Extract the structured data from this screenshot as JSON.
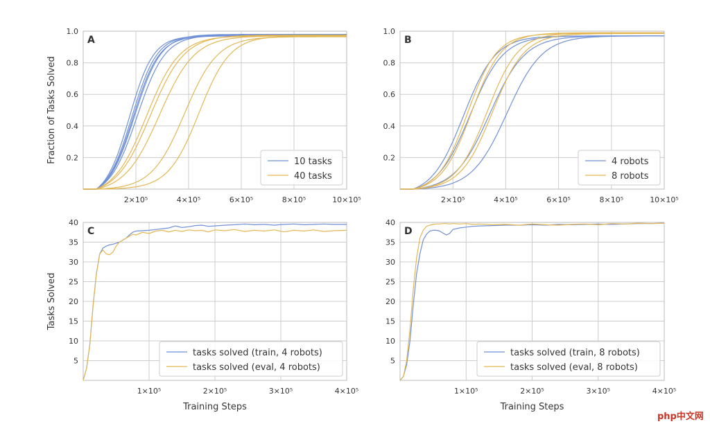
{
  "colors": {
    "blue": "#6f8fd6",
    "gold": "#e3b652"
  },
  "watermark": "php中文网",
  "chart_data": [
    {
      "id": "A",
      "type": "line",
      "letter": "A",
      "ylabel": "Fraction of Tasks Solved",
      "xlabel": "",
      "xlim": [
        0,
        1000000
      ],
      "ylim": [
        0,
        1.0
      ],
      "xticks": [
        200000,
        400000,
        600000,
        800000,
        1000000
      ],
      "xtick_labels": [
        "2×10⁵",
        "4×10⁵",
        "6×10⁵",
        "8×10⁵",
        "10×10⁵"
      ],
      "yticks": [
        0.2,
        0.4,
        0.6,
        0.8,
        1.0
      ],
      "ytick_labels": [
        "0.2",
        "0.4",
        "0.6",
        "0.8",
        "1.0"
      ],
      "legend": {
        "position": "lower-right",
        "entries": [
          {
            "label": "10 tasks",
            "color_key": "blue"
          },
          {
            "label": "40 tasks",
            "color_key": "gold"
          }
        ]
      },
      "series": [
        {
          "color_key": "blue",
          "curve": {
            "kind": "sigmoid",
            "mid": 185000,
            "k": 2.1e-05,
            "max": 0.975
          }
        },
        {
          "color_key": "blue",
          "curve": {
            "kind": "sigmoid",
            "mid": 175000,
            "k": 2.2e-05,
            "max": 0.97
          }
        },
        {
          "color_key": "blue",
          "curve": {
            "kind": "sigmoid",
            "mid": 195000,
            "k": 2e-05,
            "max": 0.98
          }
        },
        {
          "color_key": "blue",
          "curve": {
            "kind": "sigmoid",
            "mid": 205000,
            "k": 1.9e-05,
            "max": 0.975
          }
        },
        {
          "color_key": "blue",
          "curve": {
            "kind": "sigmoid",
            "mid": 190000,
            "k": 2.05e-05,
            "max": 0.97
          }
        },
        {
          "color_key": "gold",
          "curve": {
            "kind": "sigmoid",
            "mid": 255000,
            "k": 1.55e-05,
            "max": 0.975
          }
        },
        {
          "color_key": "gold",
          "curve": {
            "kind": "sigmoid",
            "mid": 240000,
            "k": 1.6e-05,
            "max": 0.97
          }
        },
        {
          "color_key": "gold",
          "curve": {
            "kind": "sigmoid",
            "mid": 290000,
            "k": 1.5e-05,
            "max": 0.97
          }
        },
        {
          "color_key": "gold",
          "curve": {
            "kind": "sigmoid",
            "mid": 385000,
            "k": 1.6e-05,
            "max": 0.965
          }
        },
        {
          "color_key": "gold",
          "curve": {
            "kind": "sigmoid",
            "mid": 440000,
            "k": 1.7e-05,
            "max": 0.97
          }
        }
      ]
    },
    {
      "id": "B",
      "type": "line",
      "letter": "B",
      "ylabel": "",
      "xlabel": "",
      "xlim": [
        0,
        1000000
      ],
      "ylim": [
        0,
        1.0
      ],
      "xticks": [
        200000,
        400000,
        600000,
        800000,
        1000000
      ],
      "xtick_labels": [
        "2×10⁵",
        "4×10⁵",
        "6×10⁵",
        "8×10⁵",
        "10×10⁵"
      ],
      "yticks": [
        0.2,
        0.4,
        0.6,
        0.8,
        1.0
      ],
      "ytick_labels": [
        "0.2",
        "0.4",
        "0.6",
        "0.8",
        "1.0"
      ],
      "legend": {
        "position": "lower-right",
        "entries": [
          {
            "label": "4 robots",
            "color_key": "blue"
          },
          {
            "label": "8 robots",
            "color_key": "gold"
          }
        ]
      },
      "series": [
        {
          "color_key": "blue",
          "curve": {
            "kind": "sigmoid",
            "mid": 240000,
            "k": 1.65e-05,
            "max": 0.97
          }
        },
        {
          "color_key": "blue",
          "curve": {
            "kind": "sigmoid",
            "mid": 265000,
            "k": 1.6e-05,
            "max": 0.97
          }
        },
        {
          "color_key": "blue",
          "curve": {
            "kind": "sigmoid",
            "mid": 340000,
            "k": 1.5e-05,
            "max": 0.97
          }
        },
        {
          "color_key": "blue",
          "curve": {
            "kind": "sigmoid",
            "mid": 405000,
            "k": 1.5e-05,
            "max": 0.97
          }
        },
        {
          "color_key": "gold",
          "curve": {
            "kind": "sigmoid",
            "mid": 255000,
            "k": 1.8e-05,
            "max": 0.985
          }
        },
        {
          "color_key": "gold",
          "curve": {
            "kind": "sigmoid",
            "mid": 270000,
            "k": 1.75e-05,
            "max": 0.99
          }
        },
        {
          "color_key": "gold",
          "curve": {
            "kind": "sigmoid",
            "mid": 330000,
            "k": 1.7e-05,
            "max": 0.99
          }
        },
        {
          "color_key": "gold",
          "curve": {
            "kind": "sigmoid",
            "mid": 350000,
            "k": 1.65e-05,
            "max": 0.985
          }
        }
      ]
    },
    {
      "id": "C",
      "type": "line",
      "letter": "C",
      "ylabel": "Tasks Solved",
      "xlabel": "Training Steps",
      "xlim": [
        0,
        400000
      ],
      "ylim": [
        0,
        40
      ],
      "xticks": [
        100000,
        200000,
        300000,
        400000
      ],
      "xtick_labels": [
        "1×10⁵",
        "2×10⁵",
        "3×10⁵",
        "4×10⁵"
      ],
      "yticks": [
        5,
        10,
        15,
        20,
        25,
        30,
        35,
        40
      ],
      "ytick_labels": [
        "5",
        "10",
        "15",
        "20",
        "25",
        "30",
        "35",
        "40"
      ],
      "legend": {
        "position": "lower-right",
        "entries": [
          {
            "label": "tasks solved (train, 4 robots)",
            "color_key": "blue"
          },
          {
            "label": "tasks solved (eval, 4 robots)",
            "color_key": "gold"
          }
        ]
      },
      "series": [
        {
          "color_key": "blue",
          "curve": {
            "kind": "points",
            "x": [
              0,
              5000,
              10000,
              15000,
              20000,
              25000,
              30000,
              35000,
              40000,
              45000,
              50000,
              55000,
              60000,
              65000,
              70000,
              75000,
              80000,
              90000,
              100000,
              110000,
              120000,
              130000,
              140000,
              150000,
              160000,
              170000,
              180000,
              190000,
              200000,
              215000,
              230000,
              245000,
              260000,
              275000,
              290000,
              305000,
              320000,
              335000,
              350000,
              365000,
              380000,
              400000
            ],
            "y": [
              0,
              3,
              9,
              19,
              27,
              32,
              33.5,
              34,
              34.3,
              34.5,
              34.7,
              35,
              35.5,
              36,
              36.8,
              37.5,
              37.8,
              37.9,
              38,
              38.2,
              38.4,
              38.6,
              39.1,
              38.7,
              38.9,
              39.2,
              39.3,
              39,
              39.1,
              39.3,
              39.4,
              39.6,
              39.4,
              39.5,
              39.3,
              39.5,
              39.6,
              39.4,
              39.5,
              39.6,
              39.5,
              39.5
            ]
          }
        },
        {
          "color_key": "gold",
          "curve": {
            "kind": "points",
            "x": [
              0,
              5000,
              10000,
              15000,
              20000,
              25000,
              30000,
              35000,
              40000,
              45000,
              50000,
              55000,
              60000,
              65000,
              70000,
              75000,
              80000,
              90000,
              100000,
              110000,
              120000,
              130000,
              140000,
              150000,
              160000,
              170000,
              180000,
              190000,
              200000,
              215000,
              230000,
              245000,
              260000,
              275000,
              290000,
              305000,
              320000,
              335000,
              350000,
              365000,
              380000,
              400000
            ],
            "y": [
              0,
              3,
              9,
              19,
              27,
              32,
              33,
              32,
              31.8,
              32.5,
              34,
              35,
              35.5,
              36,
              36.5,
              37,
              36.8,
              37.5,
              37.2,
              37.8,
              38,
              37.6,
              38,
              37.7,
              38.1,
              37.9,
              38,
              37.6,
              38.1,
              37.9,
              38.2,
              37.7,
              38,
              37.8,
              38.1,
              37.6,
              38,
              37.8,
              38.1,
              37.7,
              37.9,
              38
            ]
          }
        }
      ]
    },
    {
      "id": "D",
      "type": "line",
      "letter": "D",
      "ylabel": "",
      "xlabel": "Training Steps",
      "xlim": [
        0,
        400000
      ],
      "ylim": [
        0,
        40
      ],
      "xticks": [
        100000,
        200000,
        300000,
        400000
      ],
      "xtick_labels": [
        "1×10⁵",
        "2×10⁵",
        "3×10⁵",
        "4×10⁵"
      ],
      "yticks": [
        5,
        10,
        15,
        20,
        25,
        30,
        35,
        40
      ],
      "ytick_labels": [
        "5",
        "10",
        "15",
        "20",
        "25",
        "30",
        "35",
        "40"
      ],
      "legend": {
        "position": "lower-right",
        "entries": [
          {
            "label": "tasks solved (train, 8 robots)",
            "color_key": "blue"
          },
          {
            "label": "tasks solved (eval, 8 robots)",
            "color_key": "gold"
          }
        ]
      },
      "series": [
        {
          "color_key": "blue",
          "curve": {
            "kind": "points",
            "x": [
              0,
              5000,
              10000,
              15000,
              20000,
              25000,
              30000,
              35000,
              40000,
              45000,
              50000,
              55000,
              60000,
              65000,
              70000,
              75000,
              80000,
              90000,
              100000,
              110000,
              120000,
              140000,
              160000,
              180000,
              200000,
              220000,
              240000,
              260000,
              280000,
              300000,
              320000,
              340000,
              360000,
              380000,
              400000
            ],
            "y": [
              0,
              1,
              4,
              10,
              19,
              27,
              32,
              35.5,
              37,
              37.8,
              38,
              38,
              37.8,
              37.3,
              36.8,
              37.2,
              38.2,
              38.6,
              38.8,
              39,
              39.1,
              39.2,
              39.3,
              39.3,
              39.4,
              39.3,
              39.5,
              39.4,
              39.5,
              39.6,
              39.5,
              39.6,
              39.7,
              39.7,
              39.8
            ]
          }
        },
        {
          "color_key": "gold",
          "curve": {
            "kind": "points",
            "x": [
              0,
              5000,
              10000,
              15000,
              20000,
              25000,
              30000,
              35000,
              40000,
              45000,
              50000,
              55000,
              60000,
              65000,
              70000,
              75000,
              80000,
              90000,
              100000,
              110000,
              120000,
              140000,
              160000,
              180000,
              200000,
              220000,
              240000,
              260000,
              280000,
              300000,
              320000,
              340000,
              360000,
              380000,
              400000
            ],
            "y": [
              0,
              1,
              5,
              13,
              23,
              31,
              36,
              38,
              39,
              39.3,
              39.5,
              39.6,
              39.6,
              39.7,
              39.7,
              39.6,
              39.7,
              39.6,
              39.7,
              39.5,
              39.6,
              39.4,
              39.5,
              39.3,
              39.6,
              39.4,
              39.3,
              39.5,
              39.6,
              39.4,
              39.7,
              39.6,
              39.8,
              39.7,
              39.8
            ]
          }
        }
      ]
    }
  ]
}
